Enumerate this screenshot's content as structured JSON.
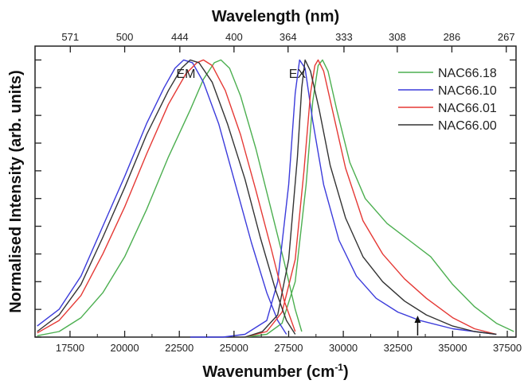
{
  "chart_data": {
    "type": "line",
    "xlabel_main": "Wavenumber (cm",
    "xlabel_sup": "-1",
    "xlabel_close": ")",
    "xlabel_top": "Wavelength (nm)",
    "ylabel": "Normalised Intensity (arb. units)",
    "xlim": [
      15900,
      37900
    ],
    "ylim": [
      0,
      1.05
    ],
    "x_ticks": [
      17500,
      20000,
      22500,
      25000,
      27500,
      30000,
      32500,
      35000,
      37500
    ],
    "top_ticks": [
      {
        "label": "571",
        "x": 17513
      },
      {
        "label": "500",
        "x": 20000
      },
      {
        "label": "444",
        "x": 22523
      },
      {
        "label": "400",
        "x": 25000
      },
      {
        "label": "364",
        "x": 27473
      },
      {
        "label": "333",
        "x": 30030
      },
      {
        "label": "308",
        "x": 32468
      },
      {
        "label": "286",
        "x": 34965
      },
      {
        "label": "267",
        "x": 37453
      }
    ],
    "annotations": [
      {
        "text": "EM",
        "x": 22800,
        "y": 1.05
      },
      {
        "text": "EX",
        "x": 27900,
        "y": 1.05
      }
    ],
    "arrow_x": 33400,
    "legend_position": "top-right",
    "series": [
      {
        "name": "NAC66.18",
        "color": "#4caf50",
        "points": [
          [
            16000,
            0.005
          ],
          [
            17000,
            0.02
          ],
          [
            18000,
            0.07
          ],
          [
            19000,
            0.16
          ],
          [
            20000,
            0.29
          ],
          [
            21000,
            0.46
          ],
          [
            22000,
            0.65
          ],
          [
            23000,
            0.82
          ],
          [
            23600,
            0.93
          ],
          [
            24100,
            0.99
          ],
          [
            24400,
            1.0
          ],
          [
            24800,
            0.97
          ],
          [
            25300,
            0.87
          ],
          [
            26000,
            0.68
          ],
          [
            26700,
            0.46
          ],
          [
            27300,
            0.27
          ],
          [
            27800,
            0.1
          ],
          [
            28100,
            0.02
          ],
          null,
          [
            25500,
            0.0
          ],
          [
            26500,
            0.01
          ],
          [
            27200,
            0.05
          ],
          [
            27800,
            0.2
          ],
          [
            28300,
            0.55
          ],
          [
            28600,
            0.85
          ],
          [
            28850,
            0.98
          ],
          [
            29050,
            1.0
          ],
          [
            29300,
            0.96
          ],
          [
            29700,
            0.82
          ],
          [
            30300,
            0.63
          ],
          [
            31000,
            0.5
          ],
          [
            32000,
            0.41
          ],
          [
            33000,
            0.35
          ],
          [
            34000,
            0.29
          ],
          [
            35000,
            0.19
          ],
          [
            36000,
            0.11
          ],
          [
            37000,
            0.05
          ],
          [
            37800,
            0.02
          ]
        ]
      },
      {
        "name": "NAC66.10",
        "color": "#3b3bdb",
        "points": [
          [
            16000,
            0.04
          ],
          [
            17000,
            0.1
          ],
          [
            18000,
            0.22
          ],
          [
            19000,
            0.4
          ],
          [
            20000,
            0.58
          ],
          [
            21000,
            0.77
          ],
          [
            21800,
            0.9
          ],
          [
            22300,
            0.97
          ],
          [
            22700,
            1.0
          ],
          [
            23100,
            0.99
          ],
          [
            23600,
            0.92
          ],
          [
            24300,
            0.77
          ],
          [
            25000,
            0.57
          ],
          [
            25800,
            0.34
          ],
          [
            26500,
            0.16
          ],
          [
            27000,
            0.06
          ],
          [
            27400,
            0.01
          ],
          null,
          [
            23000,
            0.0
          ],
          [
            24500,
            0.0
          ],
          [
            25500,
            0.01
          ],
          [
            26500,
            0.06
          ],
          [
            27000,
            0.2
          ],
          [
            27500,
            0.55
          ],
          [
            27800,
            0.88
          ],
          [
            28000,
            1.0
          ],
          [
            28250,
            0.97
          ],
          [
            28600,
            0.78
          ],
          [
            29100,
            0.55
          ],
          [
            29800,
            0.35
          ],
          [
            30600,
            0.22
          ],
          [
            31500,
            0.14
          ],
          [
            32500,
            0.09
          ],
          [
            33500,
            0.06
          ],
          [
            35000,
            0.03
          ],
          [
            37000,
            0.01
          ]
        ]
      },
      {
        "name": "NAC66.01",
        "color": "#e53935",
        "points": [
          [
            16000,
            0.015
          ],
          [
            17000,
            0.06
          ],
          [
            18000,
            0.15
          ],
          [
            19000,
            0.3
          ],
          [
            20000,
            0.47
          ],
          [
            21000,
            0.66
          ],
          [
            22000,
            0.84
          ],
          [
            22800,
            0.95
          ],
          [
            23300,
            0.99
          ],
          [
            23600,
            1.0
          ],
          [
            24000,
            0.98
          ],
          [
            24600,
            0.89
          ],
          [
            25300,
            0.73
          ],
          [
            26000,
            0.53
          ],
          [
            26700,
            0.32
          ],
          [
            27300,
            0.13
          ],
          [
            27800,
            0.02
          ],
          null,
          [
            25500,
            0.0
          ],
          [
            26500,
            0.02
          ],
          [
            27200,
            0.09
          ],
          [
            27800,
            0.28
          ],
          [
            28200,
            0.6
          ],
          [
            28500,
            0.88
          ],
          [
            28700,
            0.98
          ],
          [
            28850,
            1.0
          ],
          [
            29100,
            0.96
          ],
          [
            29500,
            0.82
          ],
          [
            30100,
            0.61
          ],
          [
            30900,
            0.42
          ],
          [
            31800,
            0.3
          ],
          [
            32800,
            0.21
          ],
          [
            33800,
            0.14
          ],
          [
            35000,
            0.07
          ],
          [
            36000,
            0.03
          ],
          [
            37000,
            0.01
          ]
        ]
      },
      {
        "name": "NAC66.00",
        "color": "#333333",
        "points": [
          [
            16000,
            0.02
          ],
          [
            17000,
            0.08
          ],
          [
            18000,
            0.19
          ],
          [
            19000,
            0.36
          ],
          [
            20000,
            0.54
          ],
          [
            21000,
            0.73
          ],
          [
            22000,
            0.89
          ],
          [
            22600,
            0.97
          ],
          [
            23000,
            1.0
          ],
          [
            23400,
            0.99
          ],
          [
            24000,
            0.92
          ],
          [
            24700,
            0.77
          ],
          [
            25500,
            0.57
          ],
          [
            26200,
            0.36
          ],
          [
            26900,
            0.17
          ],
          [
            27400,
            0.06
          ],
          [
            27800,
            0.01
          ],
          null,
          [
            25500,
            0.0
          ],
          [
            26300,
            0.02
          ],
          [
            27000,
            0.08
          ],
          [
            27500,
            0.28
          ],
          [
            27900,
            0.65
          ],
          [
            28100,
            0.9
          ],
          [
            28250,
            1.0
          ],
          [
            28500,
            0.96
          ],
          [
            28900,
            0.82
          ],
          [
            29400,
            0.62
          ],
          [
            30100,
            0.43
          ],
          [
            30900,
            0.29
          ],
          [
            31800,
            0.2
          ],
          [
            32800,
            0.13
          ],
          [
            33800,
            0.08
          ],
          [
            35000,
            0.04
          ],
          [
            36000,
            0.02
          ],
          [
            37000,
            0.01
          ]
        ]
      }
    ]
  }
}
